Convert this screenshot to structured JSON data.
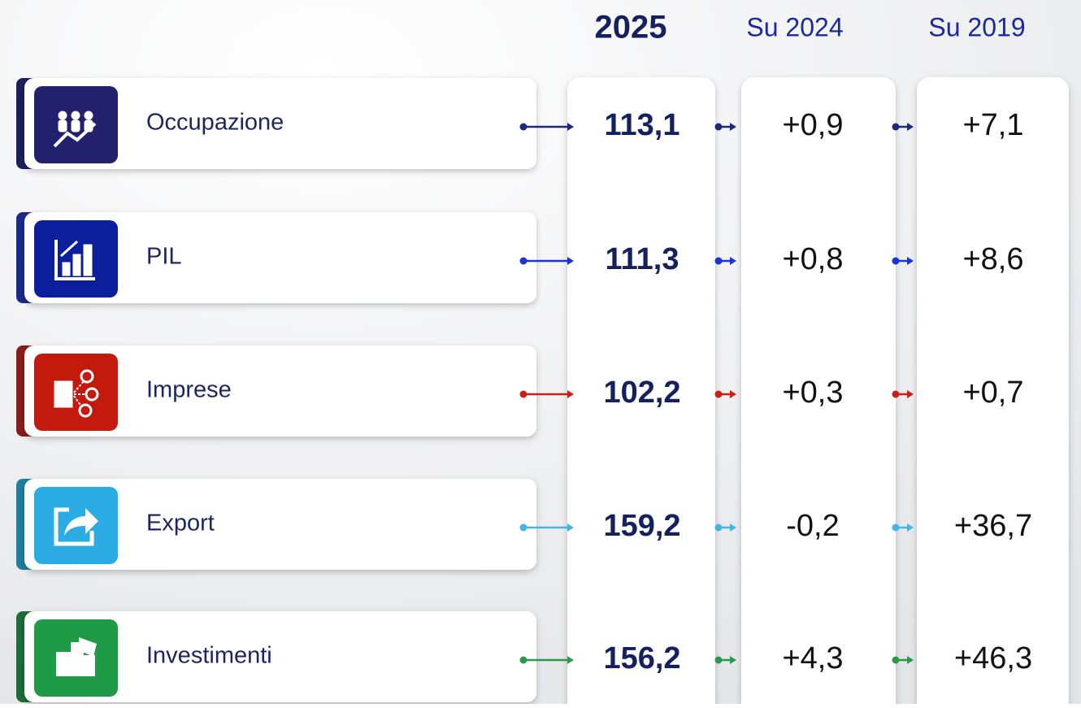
{
  "header": [
    "2025",
    "Su 2024",
    "Su 2019"
  ],
  "rows": [
    {
      "label": "Occupazione",
      "values": [
        "113,1",
        "+0,9",
        "+7,1"
      ],
      "color": "#23216e",
      "accent": "#1b1f5c",
      "arrow": "#1b2a7a"
    },
    {
      "label": "PIL",
      "values": [
        "111,3",
        "+0,8",
        "+8,6"
      ],
      "color": "#0b1f9c",
      "accent": "#1a2a8a",
      "arrow": "#1a34d6"
    },
    {
      "label": "Imprese",
      "values": [
        "102,2",
        "+0,3",
        "+0,7"
      ],
      "color": "#c4190d",
      "accent": "#8b1c1c",
      "arrow": "#c8201a"
    },
    {
      "label": "Export",
      "values": [
        "159,2",
        "-0,2",
        "+36,7"
      ],
      "color": "#2cace4",
      "accent": "#1e7fa0",
      "arrow": "#45b4e6"
    },
    {
      "label": "Investimenti",
      "values": [
        "156,2",
        "+4,3",
        "+46,3"
      ],
      "color": "#1f9a46",
      "accent": "#1b6e3a",
      "arrow": "#2a9a4a"
    }
  ]
}
